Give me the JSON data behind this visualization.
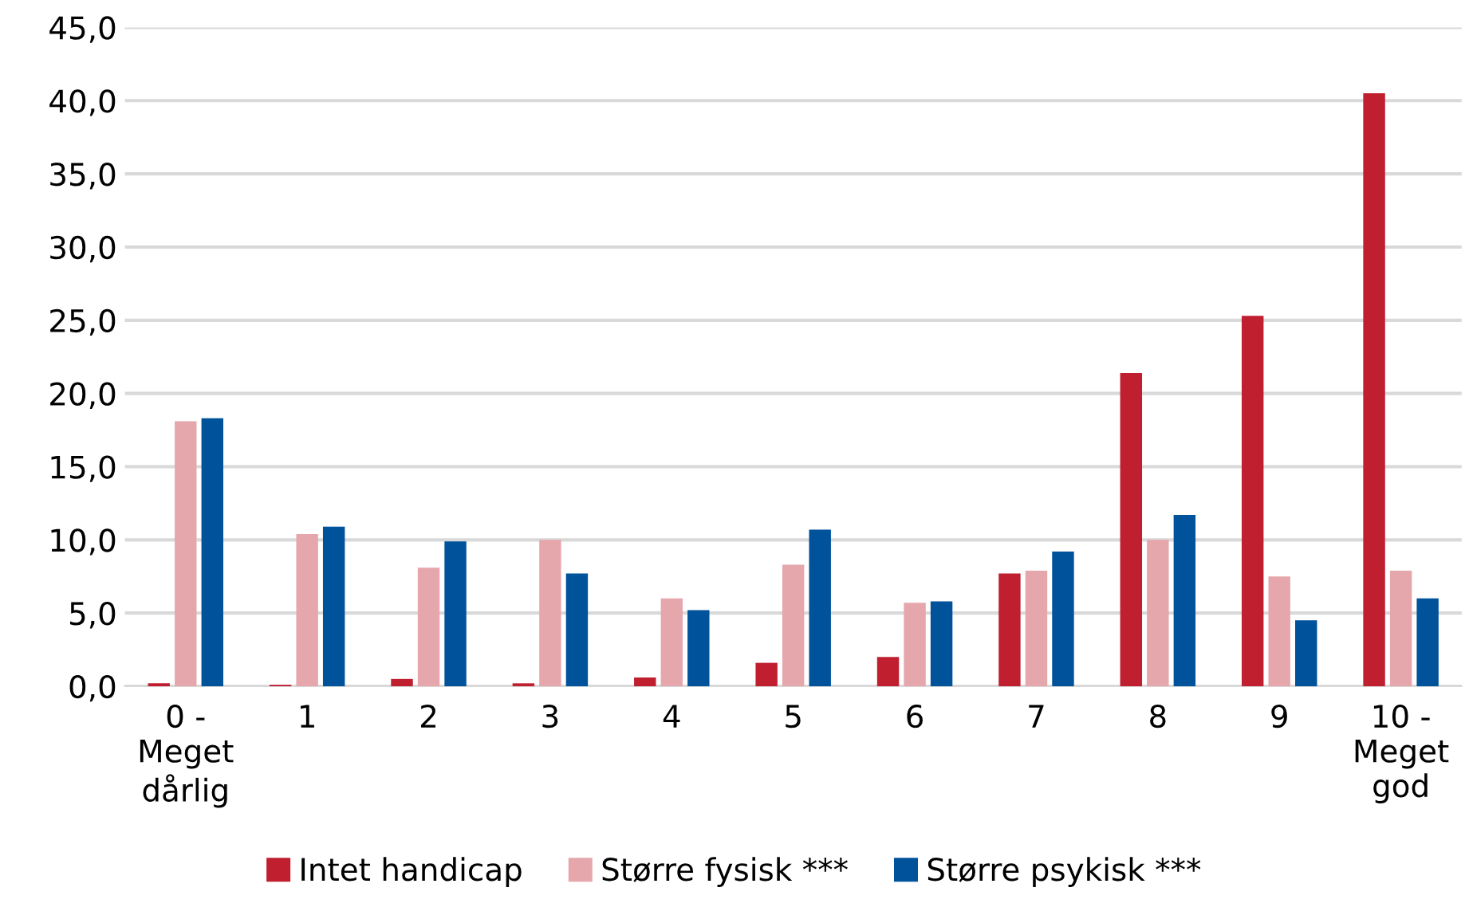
{
  "chart_data": {
    "type": "bar",
    "categories": [
      "0 -\nMeget\ndårlig",
      "1",
      "2",
      "3",
      "4",
      "5",
      "6",
      "7",
      "8",
      "9",
      "10 -\nMeget\ngod"
    ],
    "series": [
      {
        "name": "Intet handicap",
        "color": "#c01f30",
        "values": [
          0.2,
          0.1,
          0.5,
          0.2,
          0.6,
          1.6,
          2.0,
          7.7,
          21.4,
          25.3,
          40.5
        ]
      },
      {
        "name": "Større fysisk ***",
        "color": "#e6a7ac",
        "values": [
          18.1,
          10.4,
          8.1,
          10.0,
          6.0,
          8.3,
          5.7,
          7.9,
          10.0,
          7.5,
          7.9
        ]
      },
      {
        "name": "Større psykisk ***",
        "color": "#00529b",
        "values": [
          18.3,
          10.9,
          9.9,
          7.7,
          5.2,
          10.7,
          5.8,
          9.2,
          11.7,
          4.5,
          6.0
        ]
      }
    ],
    "ylim": [
      0,
      45
    ],
    "yticks": [
      {
        "value": 0,
        "label": "0,0"
      },
      {
        "value": 5,
        "label": "5,0"
      },
      {
        "value": 10,
        "label": "10,0"
      },
      {
        "value": 15,
        "label": "15,0"
      },
      {
        "value": 20,
        "label": "20,0"
      },
      {
        "value": 25,
        "label": "25,0"
      },
      {
        "value": 30,
        "label": "30,0"
      },
      {
        "value": 35,
        "label": "35,0"
      },
      {
        "value": 40,
        "label": "40,0"
      },
      {
        "value": 45,
        "label": "45,0"
      }
    ],
    "grid": "y",
    "legend": "bottom"
  }
}
